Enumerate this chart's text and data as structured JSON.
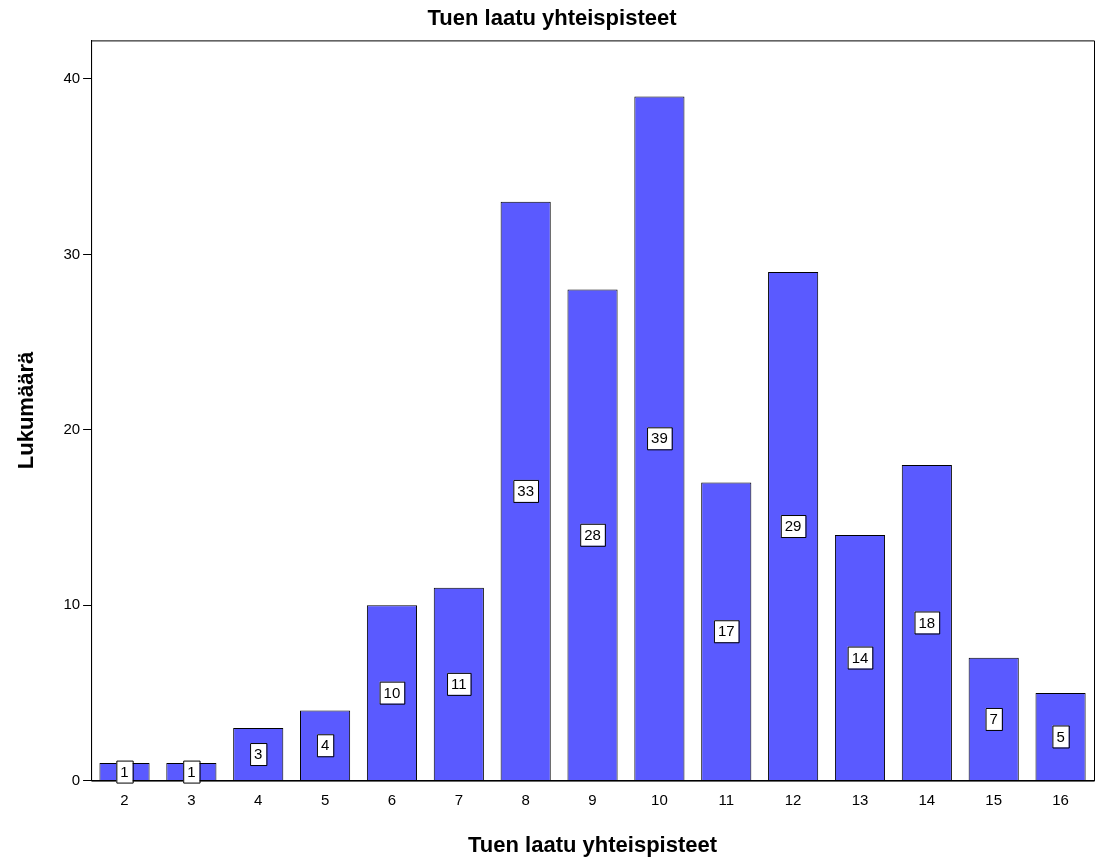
{
  "chart_data": {
    "type": "bar",
    "title": "Tuen laatu yhteispisteet",
    "xlabel": "Tuen laatu yhteispisteet",
    "ylabel": "Lukumäärä",
    "categories": [
      "2",
      "3",
      "4",
      "5",
      "6",
      "7",
      "8",
      "9",
      "10",
      "11",
      "12",
      "13",
      "14",
      "15",
      "16"
    ],
    "values": [
      1,
      1,
      3,
      4,
      10,
      11,
      33,
      28,
      39,
      17,
      29,
      14,
      18,
      7,
      5
    ],
    "color": "#5a5aff",
    "ylim": [
      0,
      42.2
    ],
    "yticks": [
      0,
      10,
      20,
      30,
      40
    ],
    "grid": false,
    "legend": false,
    "data_labels": true
  }
}
